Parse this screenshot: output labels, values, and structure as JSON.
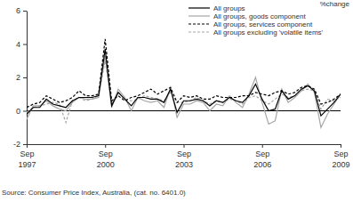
{
  "chart_data": {
    "type": "line",
    "y_label": "%change",
    "source": "Source: Consumer Price Index, Australia, (cat. no. 6401.0)",
    "categories": [
      "Sep 1997",
      null,
      null,
      null,
      null,
      null,
      null,
      null,
      null,
      null,
      null,
      null,
      "Sep 2000",
      null,
      null,
      null,
      null,
      null,
      null,
      null,
      null,
      null,
      null,
      null,
      "Sep 2003",
      null,
      null,
      null,
      null,
      null,
      null,
      null,
      null,
      null,
      null,
      null,
      "Sep 2006",
      null,
      null,
      null,
      null,
      null,
      null,
      null,
      null,
      null,
      null,
      null,
      "Sep 2009"
    ],
    "series": [
      {
        "name": "All groups",
        "color": "#000000",
        "line_style": "solid",
        "values": [
          -0.2,
          0.2,
          0.2,
          0.7,
          0.4,
          0.3,
          0.2,
          0.6,
          0.8,
          0.8,
          0.8,
          0.9,
          3.7,
          0.3,
          1.1,
          0.7,
          0.3,
          0.8,
          0.8,
          0.7,
          0.7,
          0.5,
          1.3,
          -0.1,
          0.6,
          0.6,
          0.7,
          0.6,
          0.3,
          0.6,
          0.5,
          0.8,
          0.6,
          0.5,
          0.9,
          1.6,
          0.7,
          0.0,
          0.1,
          1.2,
          0.7,
          0.9,
          1.3,
          1.5,
          1.2,
          -0.3,
          0.1,
          0.5,
          1.0
        ]
      },
      {
        "name": "All groups, goods component",
        "color": "#a6a6a6",
        "line_style": "solid",
        "values": [
          -0.5,
          0.3,
          0.3,
          0.6,
          0.3,
          0.1,
          0.0,
          0.5,
          0.8,
          0.7,
          0.7,
          0.8,
          3.3,
          0.2,
          1.3,
          0.8,
          0.0,
          0.8,
          0.6,
          0.5,
          0.6,
          0.2,
          1.4,
          -0.4,
          0.4,
          0.4,
          0.6,
          0.5,
          0.0,
          0.4,
          0.3,
          0.9,
          0.5,
          0.2,
          1.0,
          2.0,
          0.5,
          -0.8,
          -0.6,
          1.3,
          0.5,
          0.8,
          1.2,
          1.6,
          1.1,
          -1.0,
          -0.2,
          0.4,
          1.0
        ]
      },
      {
        "name": "All groups, services component",
        "color": "#000000",
        "line_style": "dashed",
        "values": [
          0.2,
          0.4,
          0.5,
          0.9,
          0.7,
          0.5,
          0.6,
          0.8,
          1.2,
          0.9,
          0.9,
          1.0,
          4.3,
          0.6,
          0.9,
          0.6,
          0.8,
          0.9,
          1.1,
          1.3,
          1.0,
          1.2,
          1.4,
          0.5,
          0.9,
          0.8,
          0.9,
          0.7,
          0.7,
          0.9,
          0.8,
          0.8,
          0.8,
          0.9,
          0.9,
          1.1,
          1.0,
          0.9,
          1.1,
          1.2,
          1.0,
          1.1,
          1.4,
          1.5,
          1.3,
          0.4,
          0.5,
          0.7,
          1.0
        ]
      },
      {
        "name": "All groups excluding 'volatile items'",
        "color": "#a6a6a6",
        "line_style": "dashed",
        "values": [
          -0.1,
          0.2,
          0.3,
          0.4,
          0.5,
          0.4,
          -0.7,
          0.6,
          0.8,
          0.6,
          0.7,
          0.9,
          3.0,
          0.4,
          1.1,
          0.7,
          0.6,
          0.7,
          0.9,
          0.8,
          0.7,
          0.6,
          1.1,
          0.5,
          0.5,
          0.6,
          0.8,
          0.6,
          0.4,
          0.6,
          0.5,
          0.7,
          0.6,
          0.4,
          0.8,
          0.9,
          0.6,
          0.4,
          0.7,
          1.0,
          0.8,
          0.9,
          1.2,
          1.3,
          1.2,
          0.1,
          0.7,
          0.6,
          0.8
        ]
      }
    ],
    "ylim": [
      -2,
      6
    ],
    "yticks": [
      -2,
      0,
      2,
      4,
      6
    ],
    "grid": false,
    "legend": "top"
  }
}
